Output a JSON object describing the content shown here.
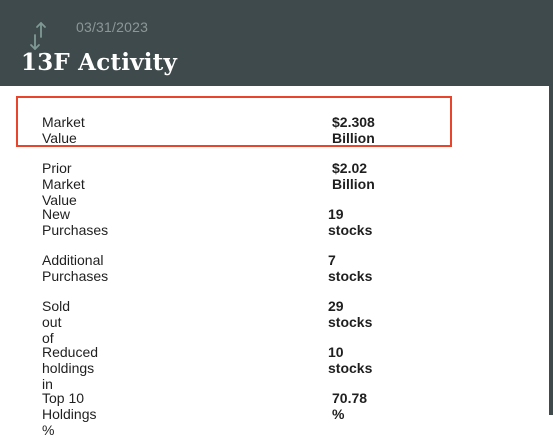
{
  "header": {
    "icon": "up-down-arrows-icon",
    "date": "03/31/2023",
    "title": "13F Activity"
  },
  "activity": {
    "rows": [
      {
        "label": "Market Value",
        "value": "$2.308 Billion"
      },
      {
        "label": "Prior Market Value",
        "value": "$2.02 Billion"
      },
      {
        "label": "New Purchases",
        "value": "19 stocks"
      },
      {
        "label": "Additional Purchases",
        "value": "7 stocks"
      },
      {
        "label": "Sold out of",
        "value": "29 stocks"
      },
      {
        "label": "Reduced holdings in",
        "value": "10 stocks"
      },
      {
        "label": "Top 10 Holdings %",
        "value": "70.78 %"
      }
    ]
  },
  "colors": {
    "header_bg": "#3e4a4c",
    "highlight": "#e8452c"
  }
}
